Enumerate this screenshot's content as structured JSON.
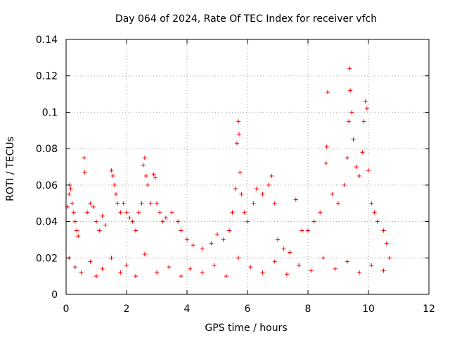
{
  "chart_data": {
    "type": "scatter",
    "title": "Day 064 of 2024, Rate Of TEC Index for receiver vfch",
    "xlabel": "GPS time / hours",
    "ylabel": "ROTI / TECUs",
    "xlim": [
      0,
      12
    ],
    "ylim": [
      0,
      0.14
    ],
    "xticks": [
      0,
      2,
      4,
      6,
      8,
      10,
      12
    ],
    "yticks": [
      0,
      0.02,
      0.04,
      0.06,
      0.08,
      0.1,
      0.12,
      0.14
    ],
    "xtick_labels": [
      "0",
      "2",
      "4",
      "6",
      "8",
      "10",
      "12"
    ],
    "ytick_labels": [
      "0",
      "0.02",
      "0.04",
      "0.06",
      "0.08",
      "0.1",
      "0.12",
      "0.14"
    ],
    "grid": true,
    "marker": "+",
    "marker_color": "#ff0000",
    "series": [
      {
        "name": "ROTI",
        "points": [
          [
            0.05,
            0.048
          ],
          [
            0.1,
            0.055
          ],
          [
            0.12,
            0.06
          ],
          [
            0.15,
            0.058
          ],
          [
            0.2,
            0.05
          ],
          [
            0.25,
            0.045
          ],
          [
            0.3,
            0.04
          ],
          [
            0.35,
            0.035
          ],
          [
            0.4,
            0.032
          ],
          [
            0.6,
            0.075
          ],
          [
            0.62,
            0.067
          ],
          [
            0.7,
            0.045
          ],
          [
            0.8,
            0.05
          ],
          [
            0.9,
            0.048
          ],
          [
            1.0,
            0.04
          ],
          [
            1.1,
            0.035
          ],
          [
            1.2,
            0.043
          ],
          [
            1.3,
            0.038
          ],
          [
            1.5,
            0.068
          ],
          [
            1.55,
            0.065
          ],
          [
            1.6,
            0.06
          ],
          [
            1.65,
            0.055
          ],
          [
            1.7,
            0.05
          ],
          [
            1.8,
            0.045
          ],
          [
            1.9,
            0.05
          ],
          [
            2.0,
            0.045
          ],
          [
            2.1,
            0.042
          ],
          [
            2.2,
            0.04
          ],
          [
            2.3,
            0.035
          ],
          [
            2.4,
            0.045
          ],
          [
            2.5,
            0.05
          ],
          [
            2.55,
            0.071
          ],
          [
            2.6,
            0.075
          ],
          [
            2.65,
            0.065
          ],
          [
            2.7,
            0.06
          ],
          [
            2.8,
            0.05
          ],
          [
            2.9,
            0.066
          ],
          [
            2.95,
            0.064
          ],
          [
            3.0,
            0.05
          ],
          [
            3.1,
            0.045
          ],
          [
            3.2,
            0.04
          ],
          [
            3.3,
            0.042
          ],
          [
            3.5,
            0.045
          ],
          [
            3.7,
            0.04
          ],
          [
            3.8,
            0.035
          ],
          [
            4.0,
            0.03
          ],
          [
            4.2,
            0.027
          ],
          [
            4.5,
            0.025
          ],
          [
            4.8,
            0.028
          ],
          [
            5.0,
            0.033
          ],
          [
            5.2,
            0.03
          ],
          [
            5.4,
            0.035
          ],
          [
            5.5,
            0.045
          ],
          [
            5.6,
            0.058
          ],
          [
            5.65,
            0.083
          ],
          [
            5.7,
            0.095
          ],
          [
            5.72,
            0.088
          ],
          [
            5.75,
            0.067
          ],
          [
            5.8,
            0.055
          ],
          [
            5.9,
            0.045
          ],
          [
            6.0,
            0.04
          ],
          [
            6.2,
            0.05
          ],
          [
            6.3,
            0.058
          ],
          [
            6.5,
            0.055
          ],
          [
            6.7,
            0.06
          ],
          [
            6.8,
            0.065
          ],
          [
            6.9,
            0.05
          ],
          [
            7.0,
            0.03
          ],
          [
            7.2,
            0.025
          ],
          [
            7.4,
            0.023
          ],
          [
            7.6,
            0.052
          ],
          [
            7.8,
            0.035
          ],
          [
            8.0,
            0.035
          ],
          [
            8.2,
            0.04
          ],
          [
            8.4,
            0.045
          ],
          [
            8.6,
            0.072
          ],
          [
            8.62,
            0.081
          ],
          [
            8.65,
            0.111
          ],
          [
            8.8,
            0.055
          ],
          [
            9.0,
            0.05
          ],
          [
            9.2,
            0.06
          ],
          [
            9.3,
            0.075
          ],
          [
            9.35,
            0.095
          ],
          [
            9.4,
            0.112
          ],
          [
            9.38,
            0.124
          ],
          [
            9.45,
            0.1
          ],
          [
            9.5,
            0.085
          ],
          [
            9.6,
            0.07
          ],
          [
            9.7,
            0.065
          ],
          [
            9.8,
            0.078
          ],
          [
            9.85,
            0.095
          ],
          [
            9.9,
            0.106
          ],
          [
            9.95,
            0.102
          ],
          [
            10.0,
            0.068
          ],
          [
            10.1,
            0.05
          ],
          [
            10.2,
            0.045
          ],
          [
            10.3,
            0.04
          ],
          [
            10.5,
            0.035
          ],
          [
            10.6,
            0.028
          ],
          [
            0.1,
            0.02
          ],
          [
            0.3,
            0.015
          ],
          [
            0.5,
            0.012
          ],
          [
            0.8,
            0.018
          ],
          [
            1.0,
            0.01
          ],
          [
            1.2,
            0.014
          ],
          [
            1.5,
            0.02
          ],
          [
            1.8,
            0.012
          ],
          [
            2.0,
            0.016
          ],
          [
            2.3,
            0.01
          ],
          [
            2.6,
            0.022
          ],
          [
            3.0,
            0.012
          ],
          [
            3.4,
            0.015
          ],
          [
            3.8,
            0.01
          ],
          [
            4.1,
            0.014
          ],
          [
            4.5,
            0.012
          ],
          [
            4.9,
            0.016
          ],
          [
            5.3,
            0.01
          ],
          [
            5.7,
            0.02
          ],
          [
            6.1,
            0.015
          ],
          [
            6.5,
            0.012
          ],
          [
            6.9,
            0.018
          ],
          [
            7.3,
            0.011
          ],
          [
            7.7,
            0.016
          ],
          [
            8.1,
            0.013
          ],
          [
            8.5,
            0.02
          ],
          [
            8.9,
            0.014
          ],
          [
            9.3,
            0.018
          ],
          [
            9.7,
            0.012
          ],
          [
            10.1,
            0.016
          ],
          [
            10.5,
            0.013
          ],
          [
            10.7,
            0.02
          ]
        ]
      }
    ]
  }
}
